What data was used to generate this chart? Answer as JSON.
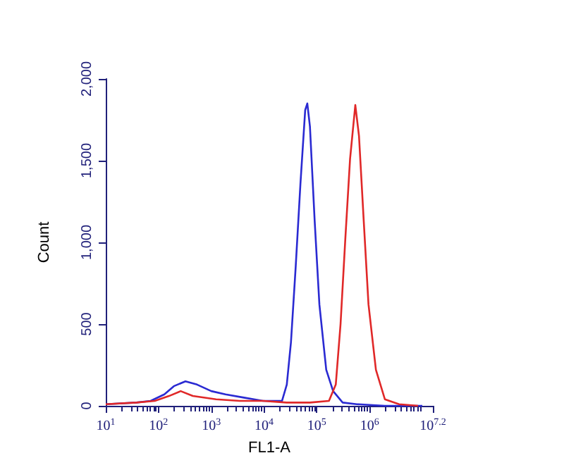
{
  "chart_data": {
    "type": "line",
    "xlabel": "FL1-A",
    "ylabel": "Count",
    "log": "x",
    "grid": false,
    "marker": "none",
    "line_style": "solid",
    "xlim": [
      10,
      15848932
    ],
    "ylim": [
      0,
      2000
    ],
    "xticks": [
      {
        "value": 10,
        "label": "10$^{1}$"
      },
      {
        "value": 100,
        "label": "10$^{2}$"
      },
      {
        "value": 1000,
        "label": "10$^{3}$"
      },
      {
        "value": 10000,
        "label": "10$^{4}$"
      },
      {
        "value": 100000,
        "label": "10$^{5}$"
      },
      {
        "value": 1000000,
        "label": "10$^{6}$"
      },
      {
        "value": 15848932,
        "label": "10$^{7.2}$"
      }
    ],
    "yticks": [
      {
        "value": 0,
        "label": "0"
      },
      {
        "value": 500,
        "label": "500"
      },
      {
        "value": 1000,
        "label": "1,000"
      },
      {
        "value": 1500,
        "label": "1,500"
      },
      {
        "value": 2000,
        "label": "2,000"
      }
    ],
    "series": [
      {
        "color": "#2a2ad2",
        "x": [
          10,
          38,
          71,
          129,
          195,
          324,
          537,
          1000,
          1862,
          4169,
          9550,
          21900,
          27000,
          32400,
          39800,
          49000,
          60300,
          66100,
          74100,
          91200,
          112000,
          151000,
          204000,
          309000,
          575000,
          1950000,
          10000000
        ],
        "values": [
          10,
          20,
          30,
          70,
          120,
          150,
          130,
          90,
          70,
          50,
          30,
          30,
          130,
          390,
          850,
          1360,
          1810,
          1850,
          1710,
          1130,
          620,
          220,
          90,
          20,
          10,
          0,
          0
        ]
      },
      {
        "color": "#e02828",
        "x": [
          10,
          38,
          85,
          158,
          263,
          447,
          1230,
          3470,
          9550,
          26900,
          74100,
          170000,
          229000,
          282000,
          347000,
          427000,
          537000,
          631000,
          776000,
          955000,
          1320000,
          1950000,
          3630000,
          8320000
        ],
        "values": [
          10,
          20,
          30,
          60,
          90,
          60,
          40,
          30,
          30,
          20,
          20,
          30,
          130,
          500,
          1020,
          1510,
          1840,
          1650,
          1130,
          620,
          220,
          40,
          10,
          0
        ]
      }
    ]
  }
}
